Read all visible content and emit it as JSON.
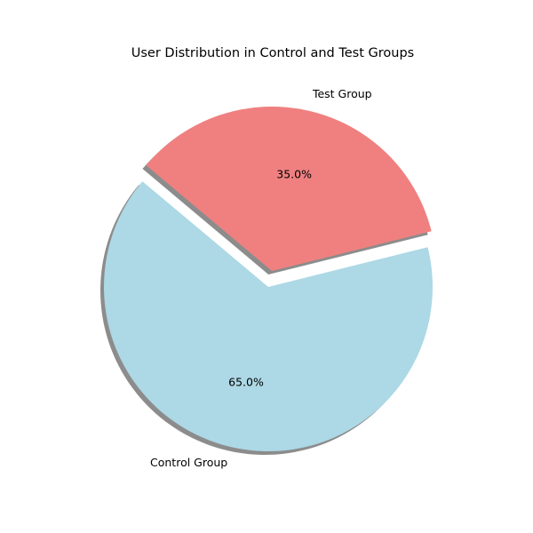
{
  "chart_data": {
    "type": "pie",
    "title": "User Distribution in Control and Test Groups",
    "slices": [
      {
        "label": "Control Group",
        "value": 65.0,
        "value_label": "65.0%",
        "color": "#add8e6",
        "exploded": false
      },
      {
        "label": "Test Group",
        "value": 35.0,
        "value_label": "35.0%",
        "color": "#f08080",
        "exploded": true
      }
    ],
    "start_angle_deg": 140,
    "shadow": true
  }
}
